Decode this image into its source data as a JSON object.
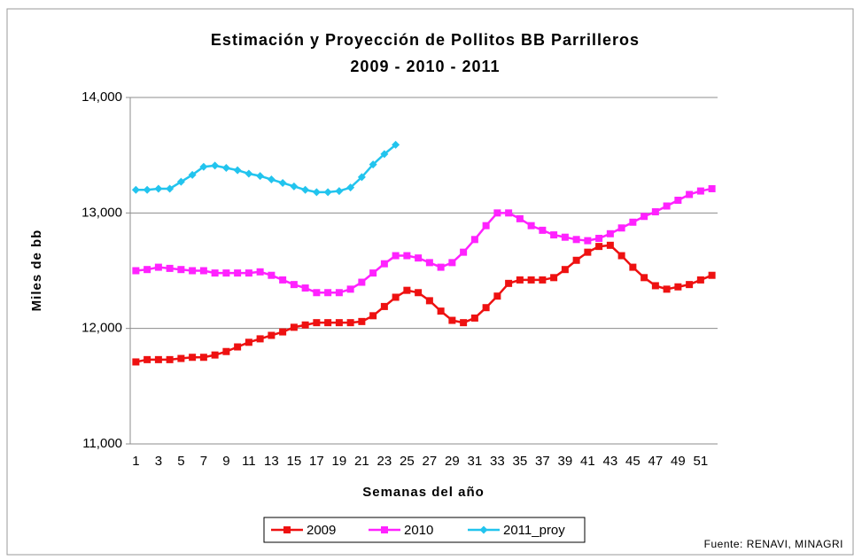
{
  "chart_data": {
    "type": "line",
    "title": "Estimación y Proyección de Pollitos BB Parrilleros",
    "subtitle": "2009 - 2010 - 2011",
    "x_label": "Semanas del año",
    "y_label": "Miles de bb",
    "source": "Fuente: RENAVI, MINAGRI",
    "categories": [
      "1",
      null,
      "3",
      null,
      "5",
      null,
      "7",
      null,
      "9",
      null,
      "11",
      null,
      "13",
      null,
      "15",
      null,
      "17",
      null,
      "19",
      null,
      "21",
      null,
      "23",
      null,
      "25",
      null,
      "27",
      null,
      "29",
      null,
      "31",
      null,
      "33",
      null,
      "35",
      null,
      "37",
      null,
      "39",
      null,
      "41",
      null,
      "43",
      null,
      "45",
      null,
      "47",
      null,
      "49",
      null,
      "51",
      null
    ],
    "ylim": [
      11000,
      14000
    ],
    "yticks": [
      {
        "value": 11000,
        "label": "11,000"
      },
      {
        "value": 12000,
        "label": "12,000"
      },
      {
        "value": 13000,
        "label": "13,000"
      },
      {
        "value": 14000,
        "label": "14,000"
      }
    ],
    "grid": true,
    "legend": "bottom",
    "series": [
      {
        "name": "2009",
        "color": "#ee1111",
        "marker": "square",
        "values": [
          11710,
          11730,
          11730,
          11730,
          11740,
          11750,
          11750,
          11770,
          11800,
          11840,
          11880,
          11910,
          11940,
          11970,
          12010,
          12030,
          12050,
          12050,
          12050,
          12050,
          12060,
          12110,
          12190,
          12270,
          12330,
          12310,
          12240,
          12150,
          12070,
          12050,
          12090,
          12180,
          12280,
          12390,
          12420,
          12420,
          12420,
          12440,
          12510,
          12590,
          12660,
          12710,
          12720,
          12630,
          12530,
          12440,
          12370,
          12340,
          12360,
          12380,
          12420,
          12460
        ]
      },
      {
        "name": "2010",
        "color": "#ff22ff",
        "marker": "square",
        "values": [
          12500,
          12510,
          12530,
          12520,
          12510,
          12500,
          12500,
          12480,
          12480,
          12480,
          12480,
          12490,
          12460,
          12420,
          12380,
          12350,
          12310,
          12310,
          12310,
          12340,
          12400,
          12480,
          12560,
          12630,
          12630,
          12610,
          12570,
          12530,
          12570,
          12660,
          12770,
          12890,
          13000,
          13000,
          12950,
          12890,
          12850,
          12810,
          12790,
          12770,
          12760,
          12780,
          12820,
          12870,
          12920,
          12970,
          13010,
          13060,
          13110,
          13160,
          13190,
          13210
        ]
      },
      {
        "name": "2011_proy",
        "color": "#22c4ee",
        "marker": "diamond",
        "values": [
          13200,
          13200,
          13210,
          13210,
          13270,
          13330,
          13400,
          13410,
          13390,
          13370,
          13340,
          13320,
          13290,
          13260,
          13230,
          13200,
          13180,
          13180,
          13190,
          13220,
          13310,
          13420,
          13510,
          13590,
          null,
          null,
          null,
          null,
          null,
          null,
          null,
          null,
          null,
          null,
          null,
          null,
          null,
          null,
          null,
          null,
          null,
          null,
          null,
          null,
          null,
          null,
          null,
          null,
          null,
          null,
          null,
          null
        ]
      }
    ]
  }
}
